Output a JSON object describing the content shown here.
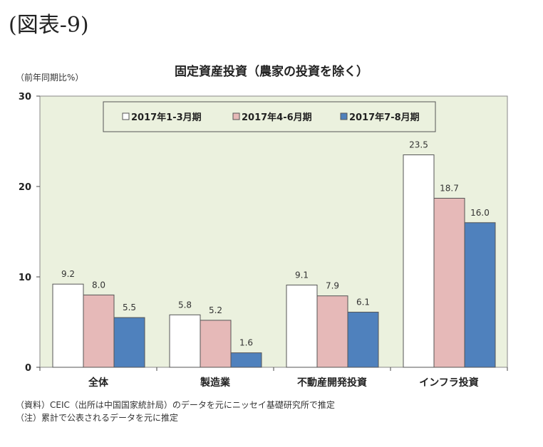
{
  "figure_label": "(図表-9)",
  "chart_data": {
    "type": "bar",
    "title": "固定資産投資（農家の投資を除く）",
    "ylabel": "（前年同期比%）",
    "ylim": [
      0,
      30
    ],
    "yticks": [
      "0",
      "10",
      "20",
      "30"
    ],
    "categories": [
      "全体",
      "製造業",
      "不動産開発投資",
      "インフラ投資"
    ],
    "series": [
      {
        "name": "2017年1-3月期",
        "values": [
          9.2,
          5.8,
          9.1,
          23.5
        ],
        "labels": [
          "9.2",
          "5.8",
          "9.1",
          "23.5"
        ],
        "color": "#ffffff"
      },
      {
        "name": "2017年4-6月期",
        "values": [
          8.0,
          5.2,
          7.9,
          18.7
        ],
        "labels": [
          "8.0",
          "5.2",
          "7.9",
          "18.7"
        ],
        "color": "#e6b9b8"
      },
      {
        "name": "2017年7-8月期",
        "values": [
          5.5,
          1.6,
          6.1,
          16.0
        ],
        "labels": [
          "5.5",
          "1.6",
          "6.1",
          "16.0"
        ],
        "color": "#4f81bd"
      }
    ],
    "legend_position": "top",
    "plot_background": "#ebf1de",
    "grid": false
  },
  "notes": [
    "（資料）CEIC（出所は中国国家統計局）のデータを元にニッセイ基礎研究所で推定",
    "（注）累計で公表されるデータを元に推定"
  ]
}
